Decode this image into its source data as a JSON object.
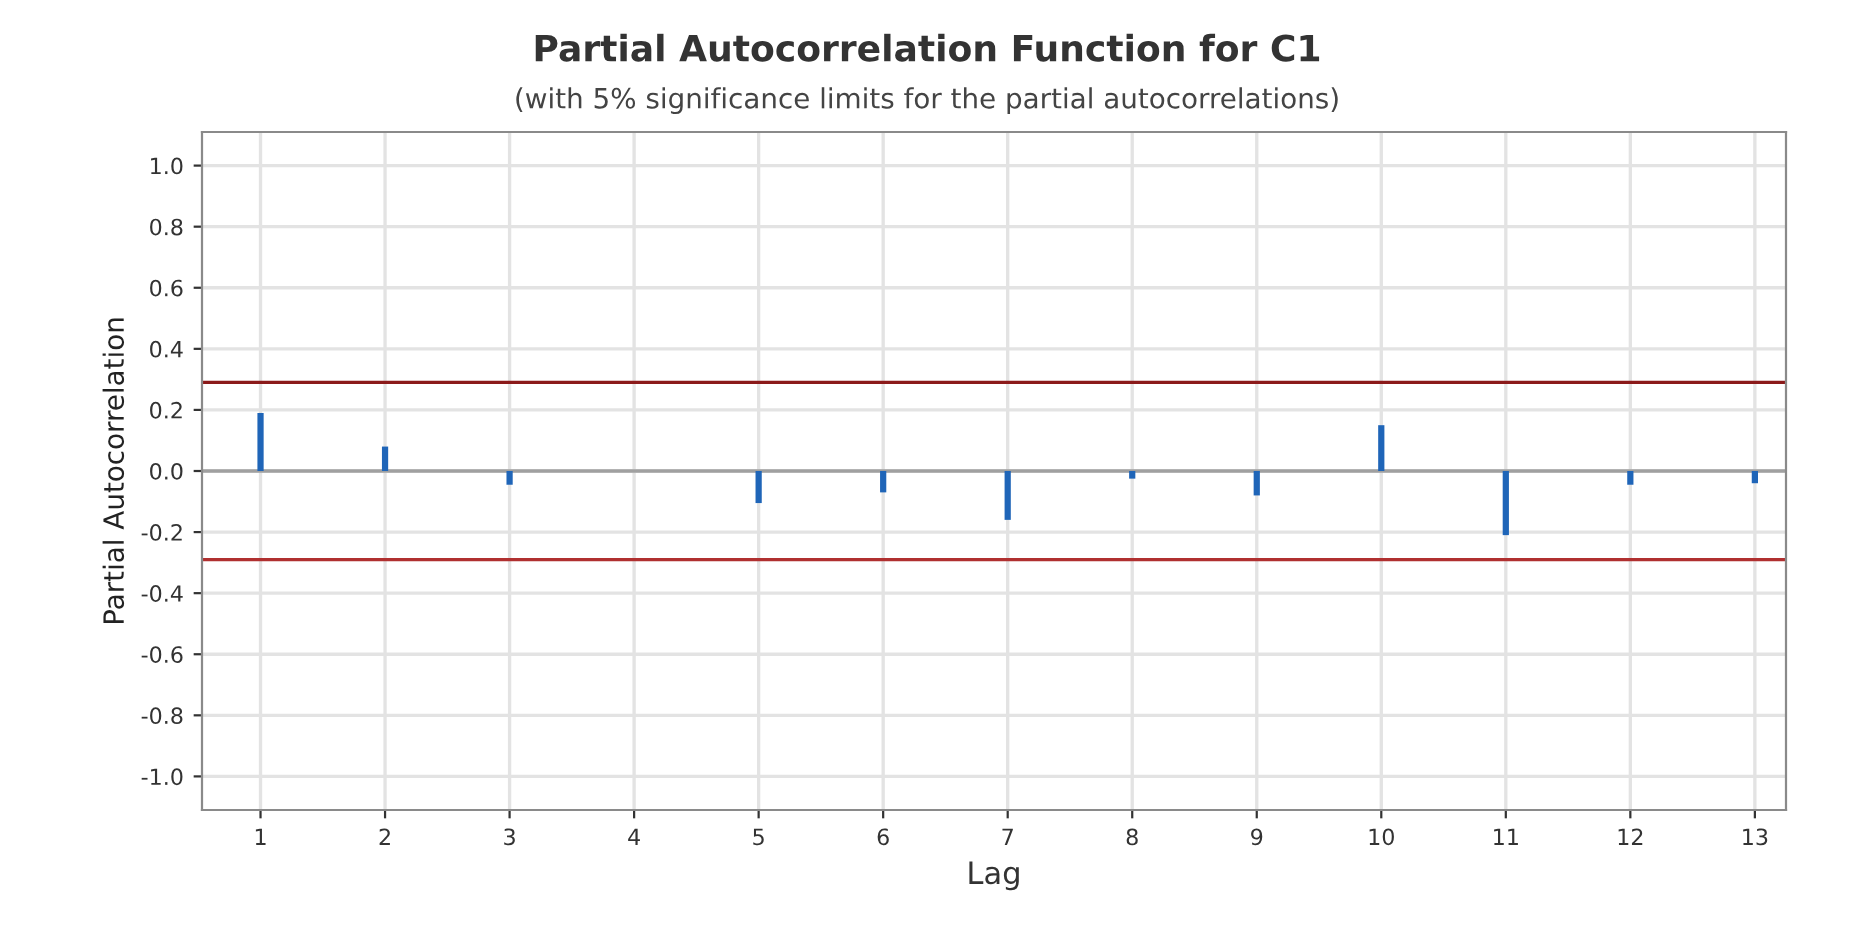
{
  "chart_data": {
    "type": "bar",
    "title": "Partial Autocorrelation Function for C1",
    "subtitle": "(with 5% significance limits for the partial autocorrelations)",
    "xlabel": "Lag",
    "ylabel": "Partial Autocorrelation",
    "x": [
      1,
      2,
      3,
      4,
      5,
      6,
      7,
      8,
      9,
      10,
      11,
      12,
      13
    ],
    "values": [
      0.19,
      0.08,
      -0.045,
      0.0,
      -0.105,
      -0.07,
      -0.16,
      -0.025,
      -0.08,
      0.15,
      -0.21,
      -0.045,
      -0.04
    ],
    "color": "#1f65b8",
    "xlim": [
      0.53,
      13.25
    ],
    "xticks": [
      1,
      2,
      3,
      4,
      5,
      6,
      7,
      8,
      9,
      10,
      11,
      12,
      13
    ],
    "ylim": [
      -1.11,
      1.11
    ],
    "yticks": [
      {
        "value": -1.0,
        "label": "-1.0"
      },
      {
        "value": -0.8,
        "label": "-0.8"
      },
      {
        "value": -0.6,
        "label": "-0.6"
      },
      {
        "value": -0.4,
        "label": "-0.4"
      },
      {
        "value": -0.2,
        "label": "-0.2"
      },
      {
        "value": 0.0,
        "label": "0.0"
      },
      {
        "value": 0.2,
        "label": "0.2"
      },
      {
        "value": 0.4,
        "label": "0.4"
      },
      {
        "value": 0.6,
        "label": "0.6"
      },
      {
        "value": 0.8,
        "label": "0.8"
      },
      {
        "value": 1.0,
        "label": "1.0"
      }
    ],
    "ref_lines": [
      {
        "axis": "y",
        "value": 0.29,
        "color": "#8b1a1a"
      },
      {
        "axis": "y",
        "value": -0.29,
        "color": "#b03030"
      },
      {
        "axis": "y",
        "value": 0.0,
        "color": "#a0a0a0"
      }
    ],
    "grid": true
  }
}
